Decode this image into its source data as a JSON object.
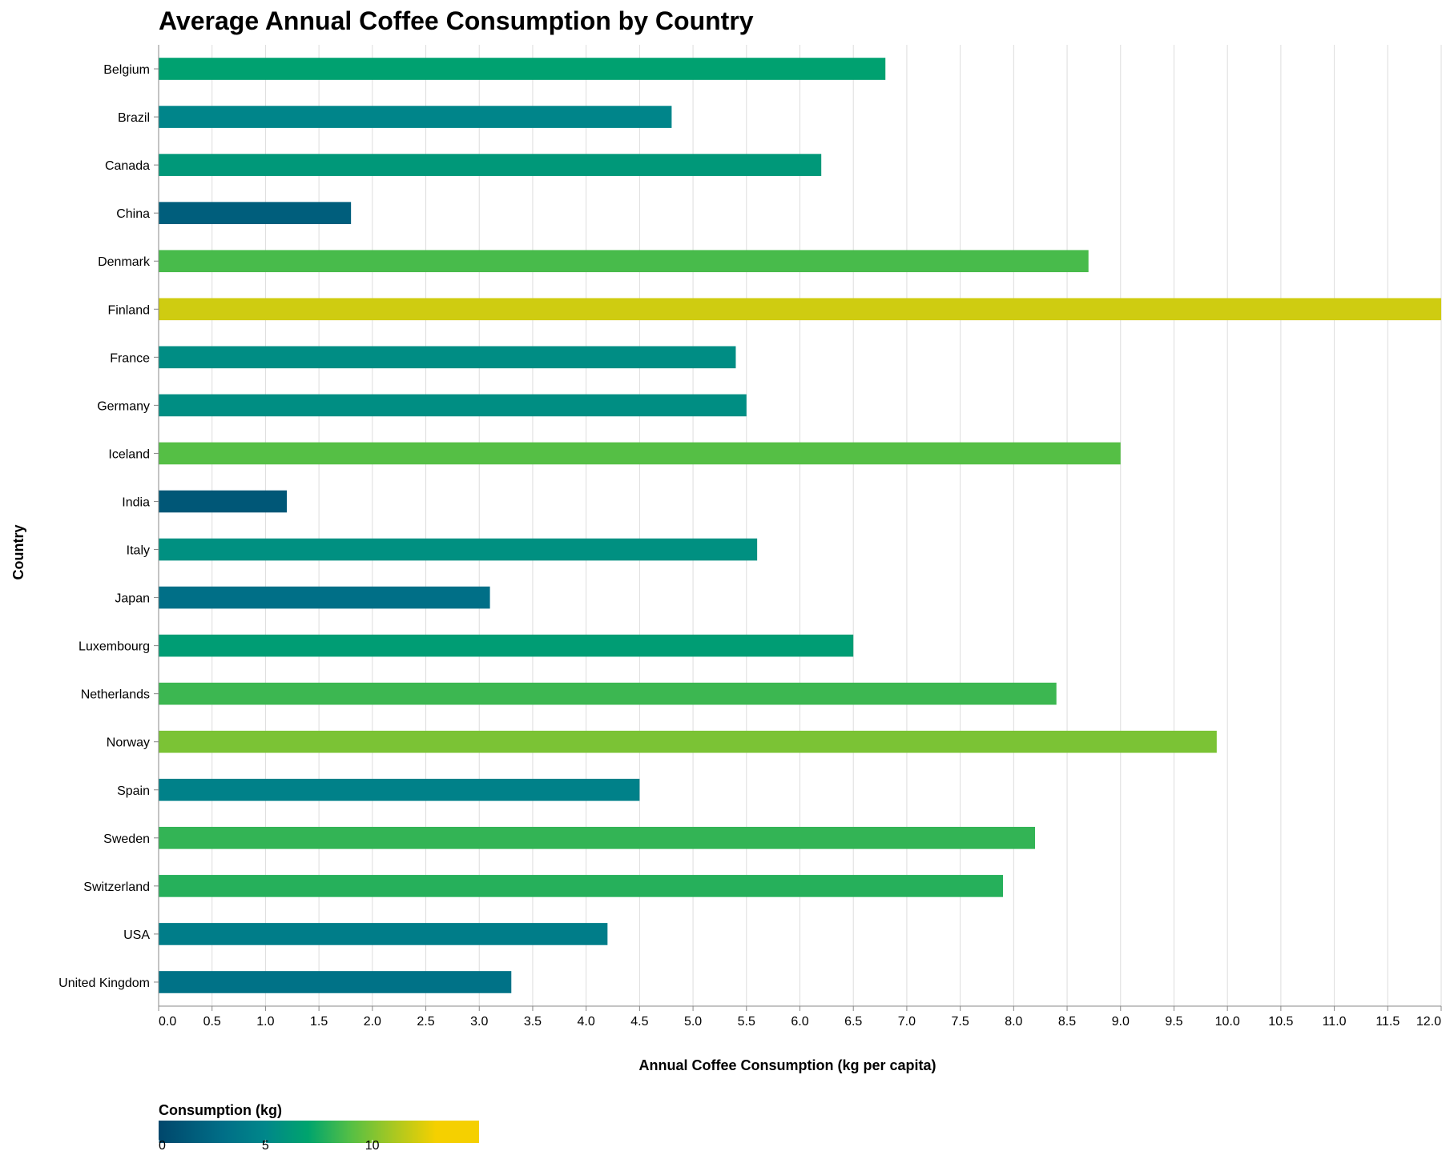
{
  "chart_data": {
    "type": "bar",
    "orientation": "horizontal",
    "title": "Average Annual Coffee Consumption by Country",
    "xlabel": "Annual Coffee Consumption (kg per capita)",
    "ylabel": "Country",
    "xlim": [
      0,
      12
    ],
    "x_ticks": [
      "0.0",
      "0.5",
      "1.0",
      "1.5",
      "2.0",
      "2.5",
      "3.0",
      "3.5",
      "4.0",
      "4.5",
      "5.0",
      "5.5",
      "6.0",
      "6.5",
      "7.0",
      "7.5",
      "8.0",
      "8.5",
      "9.0",
      "9.5",
      "10.0",
      "10.5",
      "11.0",
      "11.5",
      "12.0"
    ],
    "grid": "vertical",
    "categories": [
      "Belgium",
      "Brazil",
      "Canada",
      "China",
      "Denmark",
      "Finland",
      "France",
      "Germany",
      "Iceland",
      "India",
      "Italy",
      "Japan",
      "Luxembourg",
      "Netherlands",
      "Norway",
      "Spain",
      "Sweden",
      "Switzerland",
      "USA",
      "United Kingdom"
    ],
    "values": [
      6.8,
      4.8,
      6.2,
      1.8,
      8.7,
      12.0,
      5.4,
      5.5,
      9.0,
      1.2,
      5.6,
      3.1,
      6.5,
      8.4,
      9.9,
      4.5,
      8.2,
      7.9,
      4.2,
      3.3
    ],
    "legend": {
      "title": "Consumption (kg)",
      "placement": "bottom-left",
      "type": "color-gradient",
      "domain": [
        0,
        15
      ],
      "tick_labels": [
        "0",
        "5",
        "10"
      ],
      "tick_values": [
        0,
        5,
        10
      ]
    },
    "color_scale": {
      "scheme": "viridis-like",
      "stops": [
        {
          "value": 0,
          "color": "#00476c"
        },
        {
          "value": 3,
          "color": "#006e87"
        },
        {
          "value": 5,
          "color": "#00878a"
        },
        {
          "value": 7,
          "color": "#00a46d"
        },
        {
          "value": 9,
          "color": "#55bf45"
        },
        {
          "value": 11,
          "color": "#a9c821"
        },
        {
          "value": 13,
          "color": "#f5d000"
        }
      ]
    },
    "axis_color": "#888888",
    "grid_color": "#dddddd"
  }
}
